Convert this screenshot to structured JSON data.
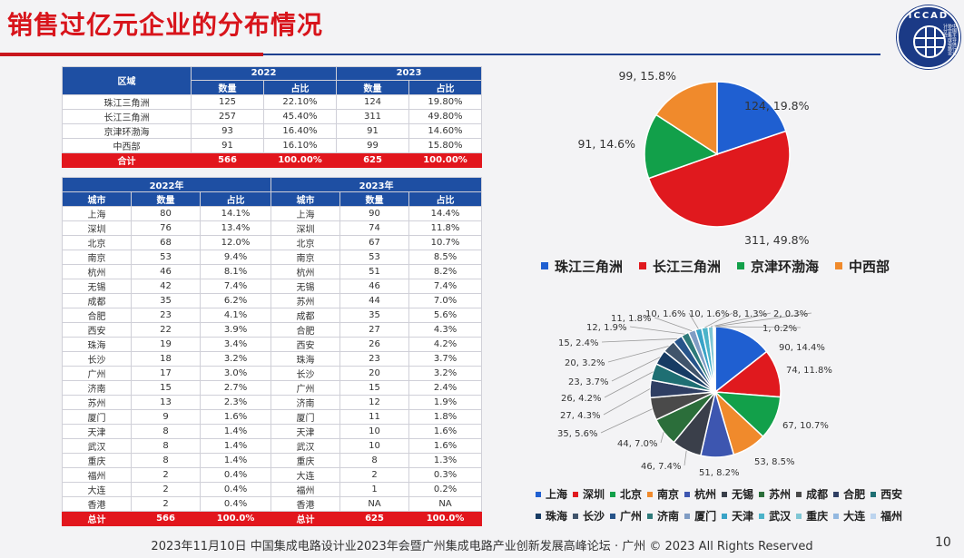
{
  "title": "销售过亿元企业的分布情况",
  "logo": {
    "text": "ICCAD",
    "subtext": "中国半导体行业协会集成电路设计分会"
  },
  "region_table": {
    "header_region": "区域",
    "years": [
      "2022",
      "2023"
    ],
    "col_count": "数量",
    "col_share": "占比",
    "rows": [
      [
        "珠江三角洲",
        "125",
        "22.10%",
        "124",
        "19.80%"
      ],
      [
        "长江三角洲",
        "257",
        "45.40%",
        "311",
        "49.80%"
      ],
      [
        "京津环渤海",
        "93",
        "16.40%",
        "91",
        "14.60%"
      ],
      [
        "中西部",
        "91",
        "16.10%",
        "99",
        "15.80%"
      ]
    ],
    "total": [
      "合计",
      "566",
      "100.00%",
      "625",
      "100.00%"
    ]
  },
  "city_table": {
    "years": [
      "2022年",
      "2023年"
    ],
    "col_city": "城市",
    "col_count": "数量",
    "col_share": "占比",
    "rows": [
      [
        "上海",
        "80",
        "14.1%",
        "上海",
        "90",
        "14.4%"
      ],
      [
        "深圳",
        "76",
        "13.4%",
        "深圳",
        "74",
        "11.8%"
      ],
      [
        "北京",
        "68",
        "12.0%",
        "北京",
        "67",
        "10.7%"
      ],
      [
        "南京",
        "53",
        "9.4%",
        "南京",
        "53",
        "8.5%"
      ],
      [
        "杭州",
        "46",
        "8.1%",
        "杭州",
        "51",
        "8.2%"
      ],
      [
        "无锡",
        "42",
        "7.4%",
        "无锡",
        "46",
        "7.4%"
      ],
      [
        "成都",
        "35",
        "6.2%",
        "苏州",
        "44",
        "7.0%"
      ],
      [
        "合肥",
        "23",
        "4.1%",
        "成都",
        "35",
        "5.6%"
      ],
      [
        "西安",
        "22",
        "3.9%",
        "合肥",
        "27",
        "4.3%"
      ],
      [
        "珠海",
        "19",
        "3.4%",
        "西安",
        "26",
        "4.2%"
      ],
      [
        "长沙",
        "18",
        "3.2%",
        "珠海",
        "23",
        "3.7%"
      ],
      [
        "广州",
        "17",
        "3.0%",
        "长沙",
        "20",
        "3.2%"
      ],
      [
        "济南",
        "15",
        "2.7%",
        "广州",
        "15",
        "2.4%"
      ],
      [
        "苏州",
        "13",
        "2.3%",
        "济南",
        "12",
        "1.9%"
      ],
      [
        "厦门",
        "9",
        "1.6%",
        "厦门",
        "11",
        "1.8%"
      ],
      [
        "天津",
        "8",
        "1.4%",
        "天津",
        "10",
        "1.6%"
      ],
      [
        "武汉",
        "8",
        "1.4%",
        "武汉",
        "10",
        "1.6%"
      ],
      [
        "重庆",
        "8",
        "1.4%",
        "重庆",
        "8",
        "1.3%"
      ],
      [
        "福州",
        "2",
        "0.4%",
        "大连",
        "2",
        "0.3%"
      ],
      [
        "大连",
        "2",
        "0.4%",
        "福州",
        "1",
        "0.2%"
      ],
      [
        "香港",
        "2",
        "0.4%",
        "香港",
        "NA",
        "NA"
      ]
    ],
    "total": [
      "总计",
      "566",
      "100.0%",
      "总计",
      "625",
      "100.0%"
    ]
  },
  "chart_data": [
    {
      "type": "pie",
      "categories": [
        "珠江三角洲",
        "长江三角洲",
        "京津环渤海",
        "中西部"
      ],
      "values": [
        124,
        311,
        91,
        99
      ],
      "labels": [
        "124, 19.8%",
        "311, 49.8%",
        "91, 14.6%",
        "99, 15.8%"
      ],
      "colors": [
        "#1f5fd1",
        "#e0191e",
        "#12a04a",
        "#f08a2c"
      ],
      "legend": "bottom"
    },
    {
      "type": "pie",
      "categories": [
        "上海",
        "深圳",
        "北京",
        "南京",
        "杭州",
        "无锡",
        "苏州",
        "成都",
        "合肥",
        "西安",
        "珠海",
        "长沙",
        "广州",
        "济南",
        "厦门",
        "天津",
        "武汉",
        "重庆",
        "大连",
        "福州"
      ],
      "values": [
        90,
        74,
        67,
        53,
        51,
        46,
        44,
        35,
        27,
        26,
        23,
        20,
        15,
        12,
        11,
        10,
        10,
        8,
        2,
        1
      ],
      "labels": [
        "90, 14.4%",
        "74, 11.8%",
        "67, 10.7%",
        "53, 8.5%",
        "51, 8.2%",
        "46, 7.4%",
        "44, 7.0%",
        "35, 5.6%",
        "27, 4.3%",
        "26, 4.2%",
        "23, 3.7%",
        "20, 3.2%",
        "15, 2.4%",
        "12, 1.9%",
        "11, 1.8%",
        "10, 1.6%",
        "10, 1.6%",
        "8, 1.3%",
        "2, 0.3%",
        "1, 0.2%"
      ],
      "colors": [
        "#1f5fd1",
        "#e0191e",
        "#12a04a",
        "#f08a2c",
        "#3d56b0",
        "#3a3f4a",
        "#2b6e3a",
        "#4a4a4a",
        "#2f3f63",
        "#1f6f73",
        "#173b63",
        "#40546b",
        "#27548a",
        "#2e7a7a",
        "#7f9cc4",
        "#39a3c7",
        "#4bb3c9",
        "#7fc6d4",
        "#93b8e0",
        "#bcd4ee"
      ],
      "legend": "bottom"
    }
  ],
  "footer": "2023年11月10日  中国集成电路设计业2023年会暨广州集成电路产业创新发展高峰论坛 · 广州 © 2023 All Rights Reserved",
  "page_number": "10"
}
